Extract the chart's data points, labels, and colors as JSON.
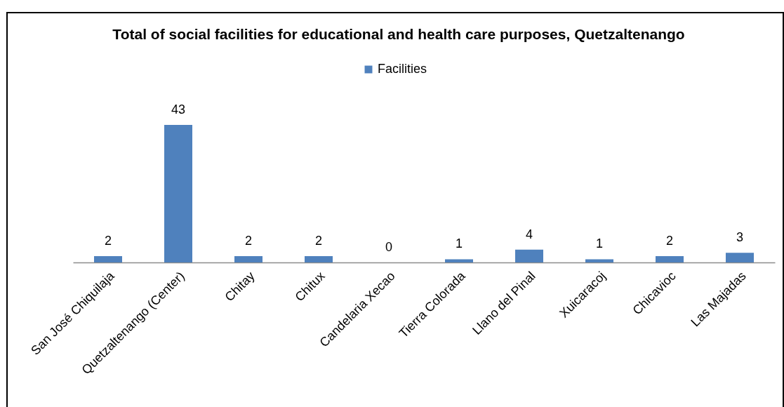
{
  "chart_data": {
    "type": "bar",
    "title": "Total of social facilities for educational and health care purposes, Quetzaltenango",
    "categories": [
      "San José Chiquilaja",
      "Quetzaltenango (Center)",
      "Chitay",
      "Chitux",
      "Candelaria Xecao",
      "Tierra Colorada",
      "Llano del Pinal",
      "Xuicaracoj",
      "Chicavioc",
      "Las Majadas"
    ],
    "series": [
      {
        "name": "Facilities",
        "color": "#4f81bd",
        "values": [
          2,
          43,
          2,
          2,
          0,
          1,
          4,
          1,
          2,
          3
        ]
      }
    ],
    "data_labels": true,
    "legend": "top",
    "tick_labels": "x"
  }
}
